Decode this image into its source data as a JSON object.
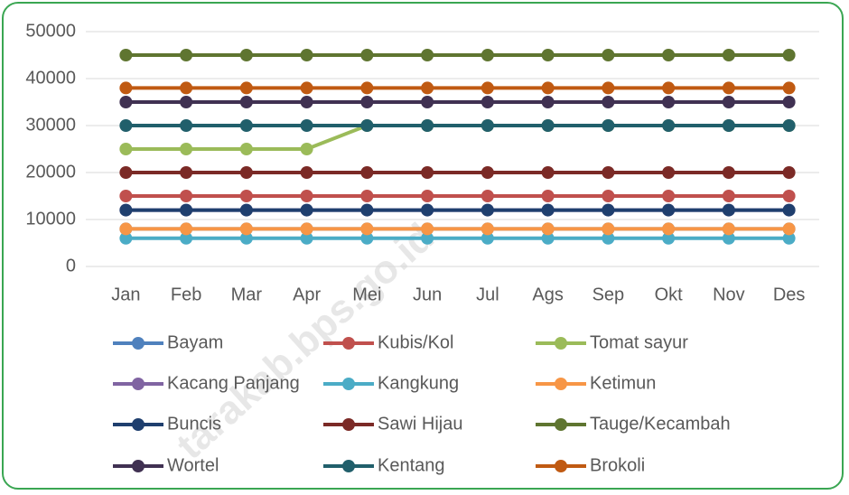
{
  "chart_data": {
    "type": "line",
    "categories": [
      "Jan",
      "Feb",
      "Mar",
      "Apr",
      "Mei",
      "Jun",
      "Jul",
      "Ags",
      "Sep",
      "Okt",
      "Nov",
      "Des"
    ],
    "series": [
      {
        "name": "Bayam",
        "color": "#4f81bd",
        "values": [
          8000,
          8000,
          8000,
          8000,
          8000,
          8000,
          8000,
          8000,
          8000,
          8000,
          8000,
          8000
        ]
      },
      {
        "name": "Kubis/Kol",
        "color": "#c0504d",
        "values": [
          15000,
          15000,
          15000,
          15000,
          15000,
          15000,
          15000,
          15000,
          15000,
          15000,
          15000,
          15000
        ]
      },
      {
        "name": "Tomat sayur",
        "color": "#9bbb59",
        "values": [
          25000,
          25000,
          25000,
          25000,
          30000,
          30000,
          30000,
          30000,
          30000,
          30000,
          30000,
          30000
        ]
      },
      {
        "name": "Kacang Panjang",
        "color": "#8064a2",
        "values": [
          12000,
          12000,
          12000,
          12000,
          12000,
          12000,
          12000,
          12000,
          12000,
          12000,
          12000,
          12000
        ]
      },
      {
        "name": "Kangkung",
        "color": "#4bacc6",
        "values": [
          6000,
          6000,
          6000,
          6000,
          6000,
          6000,
          6000,
          6000,
          6000,
          6000,
          6000,
          6000
        ]
      },
      {
        "name": "Ketimun",
        "color": "#f79646",
        "values": [
          8000,
          8000,
          8000,
          8000,
          8000,
          8000,
          8000,
          8000,
          8000,
          8000,
          8000,
          8000
        ]
      },
      {
        "name": "Buncis",
        "color": "#1f3f6e",
        "values": [
          12000,
          12000,
          12000,
          12000,
          12000,
          12000,
          12000,
          12000,
          12000,
          12000,
          12000,
          12000
        ]
      },
      {
        "name": "Sawi Hijau",
        "color": "#7b2a26",
        "values": [
          20000,
          20000,
          20000,
          20000,
          20000,
          20000,
          20000,
          20000,
          20000,
          20000,
          20000,
          20000
        ]
      },
      {
        "name": "Tauge/Kecambah",
        "color": "#5f7530",
        "values": [
          45000,
          45000,
          45000,
          45000,
          45000,
          45000,
          45000,
          45000,
          45000,
          45000,
          45000,
          45000
        ]
      },
      {
        "name": "Wortel",
        "color": "#403152",
        "values": [
          35000,
          35000,
          35000,
          35000,
          35000,
          35000,
          35000,
          35000,
          35000,
          35000,
          35000,
          35000
        ]
      },
      {
        "name": "Kentang",
        "color": "#215f6b",
        "values": [
          30000,
          30000,
          30000,
          30000,
          30000,
          30000,
          30000,
          30000,
          30000,
          30000,
          30000,
          30000
        ]
      },
      {
        "name": "Brokoli",
        "color": "#c05a12",
        "values": [
          38000,
          38000,
          38000,
          38000,
          38000,
          38000,
          38000,
          38000,
          38000,
          38000,
          38000,
          38000
        ]
      }
    ],
    "ylim": [
      0,
      50000
    ],
    "yticks": [
      0,
      10000,
      20000,
      30000,
      40000,
      50000
    ],
    "grid": true,
    "legend": "bottom",
    "watermark": "tarakab.bps.go.id"
  }
}
